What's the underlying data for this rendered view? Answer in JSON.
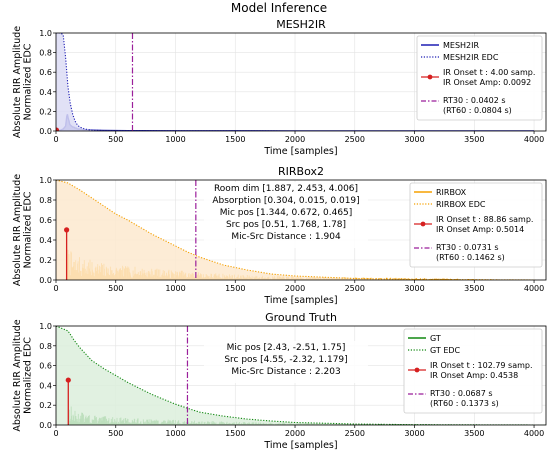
{
  "figure_title": "Model Inference",
  "chart_data": [
    {
      "type": "line",
      "title": "MESH2IR",
      "xlabel": "Time [samples]",
      "ylabel": "Absolute RIR Amplitude\nNormalized EDC",
      "xlim": [
        0,
        4100
      ],
      "ylim": [
        0,
        1.0
      ],
      "xticks": [
        0,
        500,
        1000,
        1500,
        2000,
        2500,
        3000,
        3500,
        4000
      ],
      "yticks": [
        0.0,
        0.2,
        0.4,
        0.6,
        0.8,
        1.0
      ],
      "grid": true,
      "legend_position": "upper-right",
      "series": [
        {
          "name": "MESH2IR",
          "style": "solid",
          "color": "#1f1fb4",
          "x": [
            0,
            40,
            60,
            80,
            85,
            90,
            95,
            100,
            105,
            110,
            115,
            120,
            130,
            140,
            150,
            160,
            170,
            180,
            200,
            220,
            260,
            300,
            400,
            500,
            700,
            1000,
            2000,
            3000,
            4000
          ],
          "y": [
            0,
            0.01,
            0.02,
            0.05,
            0.1,
            0.15,
            0.17,
            0.14,
            0.12,
            0.1,
            0.07,
            0.06,
            0.05,
            0.04,
            0.04,
            0.03,
            0.03,
            0.02,
            0.02,
            0.015,
            0.01,
            0.008,
            0.005,
            0.004,
            0.003,
            0.002,
            0.001,
            0.001,
            0.0
          ]
        },
        {
          "name": "MESH2IR EDC",
          "style": "dotted",
          "color": "#1f1fb4",
          "fill": "#dcdcf5",
          "x": [
            0,
            40,
            60,
            80,
            100,
            120,
            140,
            160,
            180,
            200,
            240,
            280,
            320,
            400,
            600,
            1000,
            2000,
            3000,
            4000
          ],
          "y": [
            1.0,
            1.0,
            0.98,
            0.75,
            0.45,
            0.28,
            0.17,
            0.1,
            0.06,
            0.04,
            0.02,
            0.012,
            0.008,
            0.004,
            0.002,
            0.001,
            0.0,
            0.0,
            0.0
          ]
        }
      ],
      "onset": {
        "x": 4.0,
        "y": 0.0092,
        "label": "IR Onset t : 4.00 samp.\nIR Onset Amp: 0.0092"
      },
      "rt_line": {
        "x": 640,
        "label": "RT30 : 0.0402 s\n(RT60 : 0.0804 s)"
      },
      "annotations": []
    },
    {
      "type": "line",
      "title": "RIRBox2",
      "xlabel": "Time [samples]",
      "ylabel": "Absolute RIR Amplitude\nNormalized EDC",
      "xlim": [
        0,
        4100
      ],
      "ylim": [
        0,
        1.0
      ],
      "xticks": [
        0,
        500,
        1000,
        1500,
        2000,
        2500,
        3000,
        3500,
        4000
      ],
      "yticks": [
        0.0,
        0.2,
        0.4,
        0.6,
        0.8,
        1.0
      ],
      "grid": true,
      "legend_position": "upper-right",
      "series": [
        {
          "name": "RIRBOX",
          "style": "spikes",
          "color": "#f5a000",
          "seed": 7,
          "envelope": [
            [
              0,
              0.0
            ],
            [
              88,
              0.5
            ],
            [
              90,
              0.35
            ],
            [
              150,
              0.25
            ],
            [
              300,
              0.2
            ],
            [
              500,
              0.15
            ],
            [
              800,
              0.12
            ],
            [
              1200,
              0.08
            ],
            [
              1600,
              0.05
            ],
            [
              2000,
              0.035
            ],
            [
              2500,
              0.025
            ],
            [
              3000,
              0.02
            ],
            [
              3500,
              0.01
            ],
            [
              3900,
              0.005
            ],
            [
              4100,
              0.0
            ]
          ]
        },
        {
          "name": "RIRBOX EDC",
          "style": "dotted",
          "color": "#f5a000",
          "fill": "#fde9cf",
          "x": [
            0,
            100,
            200,
            300,
            400,
            500,
            600,
            700,
            800,
            900,
            1000,
            1100,
            1200,
            1400,
            1600,
            1800,
            2000,
            2500,
            3000,
            3500,
            4000
          ],
          "y": [
            1.0,
            0.97,
            0.9,
            0.82,
            0.74,
            0.66,
            0.6,
            0.53,
            0.46,
            0.4,
            0.34,
            0.28,
            0.23,
            0.15,
            0.1,
            0.06,
            0.04,
            0.015,
            0.005,
            0.002,
            0.0
          ]
        }
      ],
      "onset": {
        "x": 88.86,
        "y": 0.5014,
        "label": "IR Onset t : 88.86 samp.\nIR Onset Amp: 0.5014"
      },
      "rt_line": {
        "x": 1170,
        "label": "RT30 : 0.0731 s\n(RT60 : 0.1462 s)"
      },
      "annotations": [
        "Room dim [1.887, 2.453, 4.006]",
        "Absorption [0.304, 0.015, 0.019]",
        "Mic pos [1.344, 0.672, 0.465]",
        "Src pos [0.51, 1.768, 1.78]",
        "Mic-Src Distance : 1.904"
      ]
    },
    {
      "type": "line",
      "title": "Ground Truth",
      "xlabel": "Time [samples]",
      "ylabel": "Absolute RIR Amplitude\nNormalized EDC",
      "xlim": [
        0,
        4100
      ],
      "ylim": [
        0,
        1.0
      ],
      "xticks": [
        0,
        500,
        1000,
        1500,
        2000,
        2500,
        3000,
        3500,
        4000
      ],
      "yticks": [
        0.0,
        0.2,
        0.4,
        0.6,
        0.8,
        1.0
      ],
      "grid": true,
      "legend_position": "upper-right",
      "series": [
        {
          "name": "GT",
          "style": "spikes",
          "color": "#118811",
          "seed": 13,
          "envelope": [
            [
              0,
              0.0
            ],
            [
              102,
              0.45
            ],
            [
              105,
              0.25
            ],
            [
              150,
              0.15
            ],
            [
              300,
              0.1
            ],
            [
              500,
              0.08
            ],
            [
              800,
              0.06
            ],
            [
              1200,
              0.045
            ],
            [
              1600,
              0.03
            ],
            [
              2000,
              0.02
            ],
            [
              2500,
              0.012
            ],
            [
              3000,
              0.008
            ],
            [
              3500,
              0.005
            ],
            [
              4100,
              0.002
            ]
          ]
        },
        {
          "name": "GT EDC",
          "style": "dotted",
          "color": "#118811",
          "fill": "#dcefdc",
          "x": [
            0,
            100,
            150,
            200,
            300,
            400,
            500,
            600,
            700,
            800,
            900,
            1000,
            1100,
            1200,
            1400,
            1600,
            1800,
            2000,
            2500,
            3000,
            4000
          ],
          "y": [
            1.0,
            0.95,
            0.86,
            0.78,
            0.65,
            0.57,
            0.5,
            0.43,
            0.37,
            0.31,
            0.26,
            0.21,
            0.17,
            0.13,
            0.09,
            0.06,
            0.04,
            0.025,
            0.01,
            0.003,
            0.0
          ]
        }
      ],
      "onset": {
        "x": 102.79,
        "y": 0.4538,
        "label": "IR Onset t : 102.79 samp.\nIR Onset Amp: 0.4538"
      },
      "rt_line": {
        "x": 1100,
        "label": "RT30 : 0.0687 s\n(RT60 : 0.1373 s)"
      },
      "annotations": [
        "Mic pos [2.43, -2.51, 1.75]",
        "Src pos [4.55, -2.32, 1.179]",
        "Mic-Src Distance : 2.203"
      ]
    }
  ]
}
